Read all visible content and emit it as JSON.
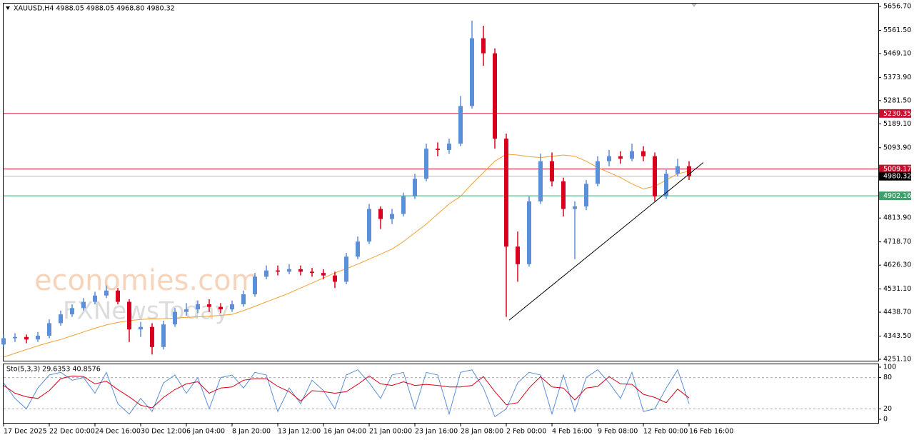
{
  "chart_data": [
    {
      "type": "candlestick",
      "title": "XAUUSD,H4  4988.05 4988.05 4968.80 4980.32",
      "categories": [
        "17 Dec 2025",
        null,
        null,
        null,
        "22 Dec 00:00",
        null,
        null,
        null,
        "24 Dec 16:00",
        null,
        null,
        null,
        "30 Dec 12:00",
        null,
        null,
        null,
        "6 Jan 04:00",
        null,
        null,
        null,
        "8 Jan 20:00",
        null,
        null,
        null,
        "13 Jan 12:00",
        null,
        null,
        null,
        "16 Jan 04:00",
        null,
        null,
        null,
        "21 Jan 00:00",
        null,
        null,
        null,
        "23 Jan 16:00",
        null,
        null,
        null,
        "28 Jan 08:00",
        null,
        null,
        null,
        "2 Feb 00:00",
        null,
        null,
        null,
        "4 Feb 16:00",
        null,
        null,
        null,
        "9 Feb 08:00",
        null,
        null,
        null,
        "12 Feb 00:00",
        null,
        null,
        null,
        "16 Feb 16:00"
      ],
      "open": [
        4310,
        4335,
        4340,
        4330,
        4345,
        4395,
        4430,
        4455,
        4480,
        4505,
        4525,
        4480,
        4370,
        4380,
        4300,
        4390,
        4440,
        4450,
        4470,
        4460,
        4450,
        4470,
        4510,
        4580,
        4605,
        4600,
        4610,
        4600,
        4595,
        4585,
        4560,
        4660,
        4720,
        4850,
        4810,
        4830,
        4900,
        4970,
        5090,
        5085,
        5110,
        5260,
        5530,
        5470,
        5130,
        4700,
        4630,
        4880,
        5040,
        4960,
        4850,
        4860,
        4950,
        5040,
        5060,
        5050,
        5080,
        5060,
        4900,
        4990,
        5020
      ],
      "high": [
        4350,
        4355,
        4350,
        4360,
        4410,
        4445,
        4470,
        4495,
        4520,
        4545,
        4535,
        4490,
        4400,
        4395,
        4405,
        4455,
        4475,
        4485,
        4490,
        4475,
        4485,
        4525,
        4595,
        4625,
        4625,
        4630,
        4625,
        4615,
        4610,
        4600,
        4675,
        4740,
        4870,
        4860,
        4850,
        4915,
        4990,
        5110,
        5115,
        5130,
        5300,
        5600,
        5580,
        5490,
        5150,
        4760,
        4900,
        5070,
        5075,
        4975,
        4880,
        4965,
        5060,
        5085,
        5080,
        5110,
        5100,
        5075,
        5010,
        5050,
        5040
      ],
      "low": [
        4300,
        4320,
        4315,
        4320,
        4335,
        4385,
        4420,
        4445,
        4470,
        4495,
        4470,
        4320,
        4340,
        4270,
        4290,
        4380,
        4425,
        4435,
        4440,
        4435,
        4440,
        4460,
        4500,
        4570,
        4585,
        4590,
        4585,
        4580,
        4570,
        4535,
        4550,
        4650,
        4710,
        4770,
        4790,
        4820,
        4890,
        4960,
        5060,
        5070,
        5100,
        5250,
        5420,
        5090,
        4420,
        4560,
        4620,
        4870,
        4940,
        4820,
        4650,
        4845,
        4940,
        5020,
        5030,
        5040,
        5040,
        4880,
        4890,
        4980,
        4965
      ],
      "close": [
        4335,
        4340,
        4330,
        4345,
        4395,
        4430,
        4455,
        4480,
        4505,
        4525,
        4480,
        4370,
        4380,
        4300,
        4390,
        4440,
        4450,
        4470,
        4460,
        4450,
        4470,
        4510,
        4580,
        4605,
        4600,
        4610,
        4600,
        4595,
        4585,
        4560,
        4660,
        4720,
        4850,
        4810,
        4830,
        4900,
        4970,
        5090,
        5085,
        5110,
        5260,
        5530,
        5470,
        5130,
        4700,
        4630,
        4880,
        5040,
        4960,
        4850,
        4860,
        4950,
        5040,
        5060,
        5050,
        5080,
        5060,
        4900,
        4990,
        5020,
        4980.32
      ],
      "up_color": "#5b8fd6",
      "down_color": "#d9001b",
      "ma": {
        "color": "#f0a030",
        "values": [
          4260,
          4275,
          4290,
          4305,
          4318,
          4330,
          4345,
          4360,
          4375,
          4388,
          4398,
          4405,
          4410,
          4412,
          4413,
          4415,
          4418,
          4420,
          4423,
          4426,
          4430,
          4445,
          4462,
          4480,
          4497,
          4515,
          4535,
          4555,
          4575,
          4595,
          4612,
          4630,
          4650,
          4670,
          4690,
          4720,
          4755,
          4790,
          4830,
          4870,
          4900,
          4950,
          4995,
          5040,
          5068,
          5065,
          5058,
          5055,
          5060,
          5065,
          5060,
          5040,
          5015,
          4995,
          4975,
          4950,
          4930,
          4940,
          4965,
          4990,
          5000
        ]
      },
      "levels": [
        {
          "value": 5230.35,
          "color": "#c8102e",
          "box": "#c8102e"
        },
        {
          "value": 5009.17,
          "color": "#c8102e",
          "box": "#c8102e"
        },
        {
          "value": 4980.32,
          "color": "#b8b8b8",
          "box": "#000000"
        },
        {
          "value": 4902.16,
          "color": "#3aa36a",
          "box": "#3aa36a"
        }
      ],
      "trendline": {
        "x": [
          44.25,
          61.25
        ],
        "values": [
          4407,
          5035
        ]
      },
      "ylim": [
        4245.4,
        5668.1
      ],
      "yticks": [
        {
          "value": 4251.1,
          "label": "4251.10"
        },
        {
          "value": 4343.5,
          "label": "4343.50"
        },
        {
          "value": 4438.7,
          "label": "4438.70"
        },
        {
          "value": 4531.1,
          "label": "4531.10"
        },
        {
          "value": 4626.3,
          "label": "4626.30"
        },
        {
          "value": 4718.7,
          "label": "4718.70"
        },
        {
          "value": 4813.9,
          "label": "4813.90"
        },
        {
          "value": 5093.9,
          "label": "5093.90"
        },
        {
          "value": 5189.1,
          "label": "5189.10"
        },
        {
          "value": 5281.5,
          "label": "5281.50"
        },
        {
          "value": 5373.9,
          "label": "5373.90"
        },
        {
          "value": 5469.1,
          "label": "5469.10"
        },
        {
          "value": 5561.5,
          "label": "5561.50"
        },
        {
          "value": 5656.7,
          "label": "5656.70"
        }
      ],
      "watermark": [
        "economies.com",
        "FXNewsToday"
      ]
    },
    {
      "type": "stochastic",
      "title": "Sto(5,3,3) 29.6353 40.8576",
      "series": [
        {
          "color": "#5b8fd6",
          "values": [
            70,
            40,
            20,
            60,
            85,
            90,
            75,
            80,
            50,
            90,
            30,
            10,
            40,
            15,
            70,
            85,
            50,
            80,
            20,
            80,
            85,
            60,
            90,
            85,
            15,
            60,
            30,
            75,
            55,
            20,
            85,
            95,
            70,
            40,
            85,
            90,
            20,
            90,
            85,
            10,
            90,
            95,
            60,
            5,
            20,
            70,
            90,
            85,
            10,
            85,
            15,
            80,
            95,
            70,
            40,
            90,
            15,
            20,
            60,
            95,
            29.6353
          ]
        },
        {
          "color": "#d9001b",
          "values": [
            65,
            50,
            43,
            40,
            55,
            78,
            83,
            82,
            68,
            73,
            57,
            43,
            27,
            22,
            42,
            57,
            68,
            72,
            50,
            60,
            62,
            75,
            78,
            78,
            63,
            53,
            35,
            55,
            53,
            50,
            53,
            67,
            83,
            68,
            65,
            72,
            65,
            67,
            65,
            62,
            62,
            65,
            82,
            53,
            28,
            32,
            60,
            82,
            62,
            60,
            37,
            60,
            63,
            82,
            68,
            67,
            48,
            42,
            32,
            58,
            40.8576
          ]
        }
      ],
      "levels": [
        20,
        80
      ],
      "ylim": [
        -6.8,
        105.5
      ],
      "yticks": [
        0,
        20,
        80,
        100
      ]
    }
  ]
}
